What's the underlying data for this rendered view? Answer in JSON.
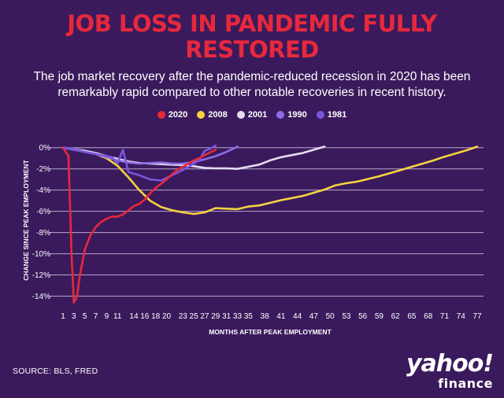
{
  "title_line1": "JOB LOSS IN PANDEMIC FULLY",
  "title_line2": "RESTORED",
  "subtitle": "The job market recovery after the pandemic-reduced recession in 2020 has been remarkably rapid compared to other notable recoveries in recent history.",
  "source": "SOURCE: BLS, FRED",
  "brand": {
    "word": "yahoo!",
    "sub": "finance"
  },
  "colors": {
    "background": "#3a1a5c",
    "grid": "#b8a8cc",
    "title": "#e8283c"
  },
  "chart_data": {
    "type": "line",
    "title": "JOB LOSS IN PANDEMIC FULLY RESTORED",
    "xlabel": "MONTHS AFTER PEAK EMPLOYMENT",
    "ylabel": "CHANGE SINCE PEAK EMPLOYMENT",
    "xlim": [
      1,
      77
    ],
    "ylim": [
      -15,
      0.5
    ],
    "grid": true,
    "legend_position": "top-center",
    "x_ticks": [
      1,
      3,
      5,
      7,
      9,
      11,
      14,
      16,
      18,
      20,
      23,
      25,
      27,
      29,
      31,
      33,
      35,
      38,
      41,
      44,
      47,
      50,
      53,
      56,
      59,
      62,
      65,
      68,
      71,
      74,
      77
    ],
    "y_ticks": [
      0,
      -2,
      -4,
      -6,
      -8,
      -10,
      -12,
      -14
    ],
    "y_tick_labels": [
      "0%",
      "-2%",
      "-4%",
      "-6%",
      "-8%",
      "-10%",
      "-12%",
      "-14%"
    ],
    "series": [
      {
        "name": "2008",
        "color": "#f5d33f",
        "x": [
          1,
          3,
          5,
          7,
          9,
          11,
          13,
          15,
          17,
          19,
          21,
          23,
          25,
          27,
          28,
          29,
          31,
          33,
          35,
          37,
          39,
          41,
          43,
          45,
          47,
          49,
          51,
          53,
          55,
          57,
          59,
          61,
          63,
          65,
          67,
          69,
          71,
          73,
          75,
          77
        ],
        "y": [
          0,
          -0.1,
          -0.3,
          -0.6,
          -1.0,
          -1.7,
          -2.8,
          -4.0,
          -5.0,
          -5.6,
          -5.9,
          -6.1,
          -6.25,
          -6.1,
          -5.9,
          -5.7,
          -5.75,
          -5.8,
          -5.55,
          -5.45,
          -5.2,
          -4.95,
          -4.75,
          -4.55,
          -4.25,
          -3.95,
          -3.55,
          -3.35,
          -3.2,
          -2.95,
          -2.7,
          -2.4,
          -2.1,
          -1.8,
          -1.5,
          -1.2,
          -0.85,
          -0.55,
          -0.25,
          0.1
        ]
      },
      {
        "name": "2001",
        "color": "#e4dcf0",
        "x": [
          1,
          3,
          5,
          7,
          9,
          11,
          13,
          15,
          17,
          19,
          21,
          23,
          25,
          27,
          29,
          31,
          33,
          35,
          37,
          39,
          41,
          43,
          45,
          47,
          49
        ],
        "y": [
          0,
          -0.15,
          -0.3,
          -0.5,
          -0.8,
          -1.05,
          -1.3,
          -1.45,
          -1.5,
          -1.55,
          -1.6,
          -1.65,
          -1.75,
          -1.9,
          -1.95,
          -1.95,
          -2.0,
          -1.8,
          -1.6,
          -1.2,
          -0.9,
          -0.7,
          -0.5,
          -0.2,
          0.1
        ]
      },
      {
        "name": "1990",
        "color": "#8f6ce6",
        "x": [
          1,
          3,
          5,
          7,
          9,
          11,
          13,
          15,
          17,
          19,
          21,
          23,
          25,
          27,
          29,
          31,
          33
        ],
        "y": [
          0,
          -0.2,
          -0.4,
          -0.6,
          -0.9,
          -1.2,
          -1.4,
          -1.5,
          -1.45,
          -1.4,
          -1.5,
          -1.5,
          -1.35,
          -1.1,
          -0.8,
          -0.4,
          0.1
        ]
      },
      {
        "name": "1981",
        "color": "#7a55e0",
        "x": [
          1,
          3,
          5,
          7,
          9,
          10,
          11,
          12,
          13,
          15,
          17,
          19,
          21,
          23,
          25,
          26,
          27,
          28,
          29
        ],
        "y": [
          0,
          -0.1,
          -0.4,
          -0.6,
          -0.8,
          -0.9,
          -1.5,
          -0.2,
          -2.3,
          -2.6,
          -3.0,
          -3.1,
          -2.6,
          -2.1,
          -1.5,
          -1.2,
          -0.3,
          -0.1,
          0.2
        ]
      },
      {
        "name": "2020",
        "color": "#e8283c",
        "x": [
          1,
          2,
          2.6,
          3,
          3.6,
          4,
          5,
          6,
          7,
          8,
          9,
          10,
          11,
          12,
          13,
          14,
          15,
          16,
          17,
          18,
          19,
          20,
          21,
          22,
          23,
          24,
          25,
          26,
          27,
          28,
          29
        ],
        "y": [
          0,
          -0.8,
          -10.5,
          -14.6,
          -14.0,
          -12.3,
          -9.6,
          -8.3,
          -7.5,
          -7.0,
          -6.7,
          -6.5,
          -6.5,
          -6.3,
          -5.9,
          -5.5,
          -5.3,
          -4.9,
          -4.3,
          -3.8,
          -3.4,
          -3.0,
          -2.5,
          -2.1,
          -1.8,
          -1.5,
          -1.2,
          -1.0,
          -0.7,
          -0.45,
          -0.2
        ]
      }
    ]
  }
}
